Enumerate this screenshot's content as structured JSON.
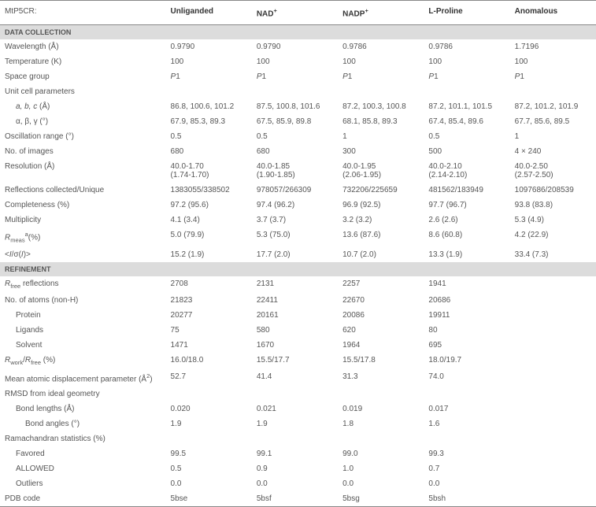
{
  "header": {
    "label": "MtP5CR:",
    "cols": [
      "Unliganded",
      "NAD<sup>+</sup>",
      "NADP<sup>+</sup>",
      "L-Proline",
      "Anomalous"
    ]
  },
  "sections": [
    {
      "title": "DATA COLLECTION",
      "rows": [
        {
          "label": "Wavelength (Å)",
          "vals": [
            "0.9790",
            "0.9790",
            "0.9786",
            "0.9786",
            "1.7196"
          ]
        },
        {
          "label": "Temperature (K)",
          "vals": [
            "100",
            "100",
            "100",
            "100",
            "100"
          ]
        },
        {
          "label": "Space group",
          "vals": [
            "<span class='italic'>P</span>1",
            "<span class='italic'>P</span>1",
            "<span class='italic'>P</span>1",
            "<span class='italic'>P</span>1",
            "<span class='italic'>P</span>1"
          ]
        },
        {
          "label": "Unit cell parameters",
          "vals": [
            "",
            "",
            "",
            "",
            ""
          ]
        },
        {
          "label": "<span class='italic'>a, b, c</span> (Å)",
          "indent": 1,
          "vals": [
            "86.8, 100.6, 101.2",
            "87.5, 100.8, 101.6",
            "87.2, 100.3, 100.8",
            "87.2, 101.1, 101.5",
            "87.2, 101.2, 101.9"
          ]
        },
        {
          "label": "α, β, γ (°)",
          "indent": 1,
          "vals": [
            "67.9, 85.3, 89.3",
            "67.5, 85.9, 89.8",
            "68.1, 85.8, 89.3",
            "67.4, 85.4, 89.6",
            "67.7, 85.6, 89.5"
          ]
        },
        {
          "label": "Oscillation range (°)",
          "vals": [
            "0.5",
            "0.5",
            "1",
            "0.5",
            "1"
          ]
        },
        {
          "label": "No. of images",
          "vals": [
            "680",
            "680",
            "300",
            "500",
            "4 × 240"
          ]
        },
        {
          "label": "Resolution (Å)",
          "vals": [
            "40.0-1.70<br>(1.74-1.70)",
            "40.0-1.85<br>(1.90-1.85)",
            "40.0-1.95<br>(2.06-1.95)",
            "40.0-2.10<br>(2.14-2.10)",
            "40.0-2.50<br>(2.57-2.50)"
          ]
        },
        {
          "label": "Reflections collected/Unique",
          "vals": [
            "1383055/338502",
            "978057/266309",
            "732206/225659",
            "481562/183949",
            "1097686/208539"
          ]
        },
        {
          "label": "Completeness (%)",
          "vals": [
            "97.2 (95.6)",
            "97.4 (96.2)",
            "96.9 (92.5)",
            "97.7 (96.7)",
            "93.8 (83.8)"
          ]
        },
        {
          "label": "Multiplicity",
          "vals": [
            "4.1 (3.4)",
            "3.7 (3.7)",
            "3.2 (3.2)",
            "2.6 (2.6)",
            "5.3 (4.9)"
          ]
        },
        {
          "label": "<span class='italic'>R</span><sub>meas</sub><sup>a</sup>(%)",
          "vals": [
            "5.0 (79.9)",
            "5.3 (75.0)",
            "13.6 (87.6)",
            "8.6 (60.8)",
            "4.2 (22.9)"
          ]
        },
        {
          "label": "&lt;<span class='italic'>I</span>/σ(<span class='italic'>I</span>)&gt;",
          "vals": [
            "15.2 (1.9)",
            "17.7 (2.0)",
            "10.7 (2.0)",
            "13.3 (1.9)",
            "33.4 (7.3)"
          ]
        }
      ]
    },
    {
      "title": "REFINEMENT",
      "rows": [
        {
          "label": "<span class='italic'>R</span><sub>free</sub> reflections",
          "vals": [
            "2708",
            "2131",
            "2257",
            "1941",
            ""
          ]
        },
        {
          "label": "No. of atoms (non-H)",
          "vals": [
            "21823",
            "22411",
            "22670",
            "20686",
            ""
          ]
        },
        {
          "label": "Protein",
          "indent": 1,
          "vals": [
            "20277",
            "20161",
            "20086",
            "19911",
            ""
          ]
        },
        {
          "label": "Ligands",
          "indent": 1,
          "vals": [
            "75",
            "580",
            "620",
            "80",
            ""
          ]
        },
        {
          "label": "Solvent",
          "indent": 1,
          "vals": [
            "1471",
            "1670",
            "1964",
            "695",
            ""
          ]
        },
        {
          "label": "<span class='italic'>R</span><sub>work</sub>/<span class='italic'>R</span><sub>free</sub> (%)",
          "vals": [
            "16.0/18.0",
            "15.5/17.7",
            "15.5/17.8",
            "18.0/19.7",
            ""
          ]
        },
        {
          "label": "Mean atomic displacement parameter (Å<sup>2</sup>)",
          "vals": [
            "52.7",
            "41.4",
            "31.3",
            "74.0",
            ""
          ]
        },
        {
          "label": "RMSD from ideal geometry",
          "vals": [
            "",
            "",
            "",
            "",
            ""
          ]
        },
        {
          "label": "Bond lengths (Å)",
          "indent": 1,
          "vals": [
            "0.020",
            "0.021",
            "0.019",
            "0.017",
            ""
          ]
        },
        {
          "label": "Bond angles (°)",
          "indent": 2,
          "vals": [
            "1.9",
            "1.9",
            "1.8",
            "1.6",
            ""
          ]
        },
        {
          "label": "Ramachandran statistics (%)",
          "vals": [
            "",
            "",
            "",
            "",
            ""
          ]
        },
        {
          "label": "Favored",
          "indent": 1,
          "vals": [
            "99.5",
            "99.1",
            "99.0",
            "99.3",
            ""
          ]
        },
        {
          "label": "ALLOWED",
          "indent": 1,
          "vals": [
            "0.5",
            "0.9",
            "1.0",
            "0.7",
            ""
          ]
        },
        {
          "label": "Outliers",
          "indent": 1,
          "vals": [
            "0.0",
            "0.0",
            "0.0",
            "0.0",
            ""
          ]
        },
        {
          "label": "PDB code",
          "vals": [
            "5bse",
            "5bsf",
            "5bsg",
            "5bsh",
            ""
          ]
        }
      ]
    }
  ]
}
